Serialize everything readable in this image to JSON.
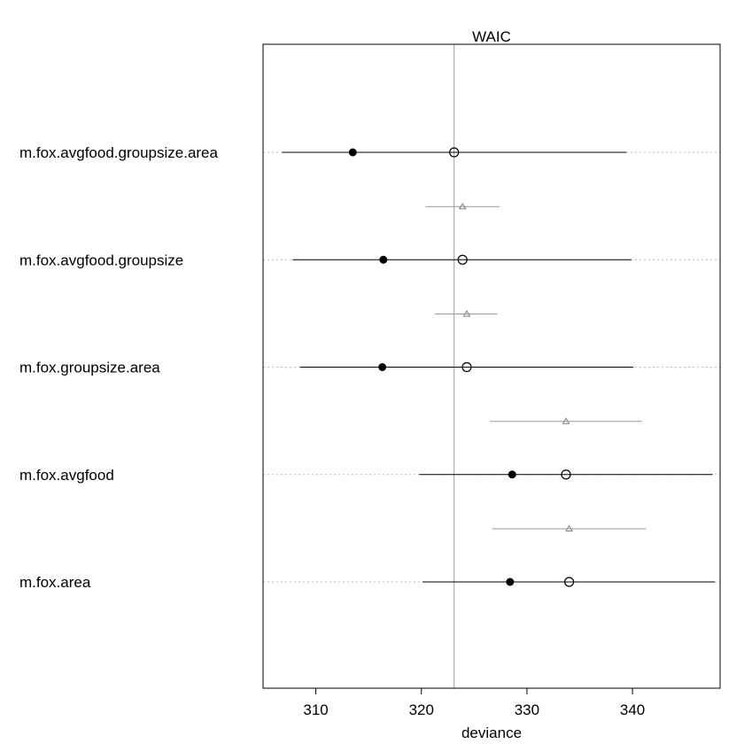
{
  "chart_data": {
    "type": "dot-interval",
    "title": "WAIC",
    "xlabel": "deviance",
    "xlim": [
      305.0,
      348.3
    ],
    "x_ticks": [
      310,
      320,
      330,
      340
    ],
    "x_tick_labels": [
      "310",
      "320",
      "330",
      "340"
    ],
    "reference_line": 323.1,
    "grid": "dotted horizontal guides per model",
    "models": [
      {
        "name": "m.fox.avgfood.groupsize.area",
        "in_sample": 313.5,
        "waic": 323.1,
        "waic_interval": [
          306.8,
          339.4
        ],
        "diff": null
      },
      {
        "name": "m.fox.avgfood.groupsize",
        "in_sample": 316.4,
        "waic": 323.9,
        "waic_interval": [
          307.8,
          339.9
        ],
        "diff": {
          "center": 323.9,
          "interval": [
            320.4,
            327.4
          ]
        }
      },
      {
        "name": "m.fox.groupsize.area",
        "in_sample": 316.3,
        "waic": 324.3,
        "waic_interval": [
          308.5,
          340.1
        ],
        "diff": {
          "center": 324.3,
          "interval": [
            321.3,
            327.2
          ]
        }
      },
      {
        "name": "m.fox.avgfood",
        "in_sample": 328.6,
        "waic": 333.7,
        "waic_interval": [
          319.8,
          347.6
        ],
        "diff": {
          "center": 333.7,
          "interval": [
            326.5,
            340.9
          ]
        }
      },
      {
        "name": "m.fox.area",
        "in_sample": 328.4,
        "waic": 334.0,
        "waic_interval": [
          320.1,
          347.8
        ],
        "diff": {
          "center": 334.0,
          "interval": [
            326.7,
            341.3
          ]
        }
      }
    ]
  }
}
